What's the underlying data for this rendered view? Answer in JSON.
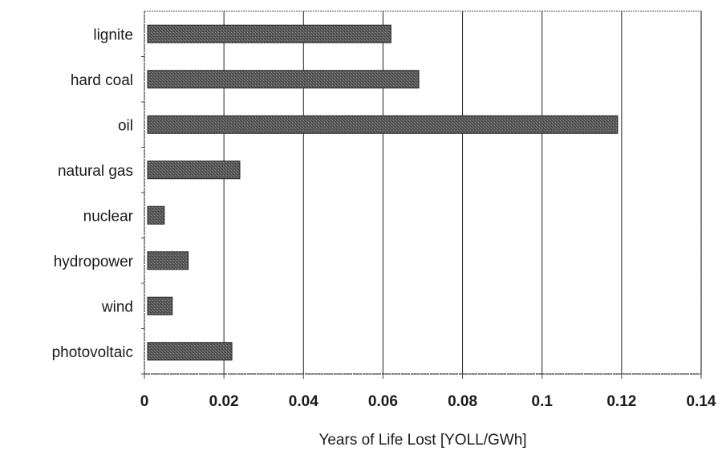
{
  "chart_data": {
    "type": "bar",
    "orientation": "horizontal",
    "categories": [
      "lignite",
      "hard coal",
      "oil",
      "natural gas",
      "nuclear",
      "hydropower",
      "wind",
      "photovoltaic"
    ],
    "values": [
      0.062,
      0.069,
      0.119,
      0.024,
      0.005,
      0.011,
      0.007,
      0.022
    ],
    "title": "",
    "xlabel": "Years of Life Lost [YOLL/GWh]",
    "ylabel": "",
    "xlim": [
      0,
      0.14
    ],
    "xticks": [
      "0",
      "0.02",
      "0.04",
      "0.06",
      "0.08",
      "0.1",
      "0.12",
      "0.14"
    ],
    "grid": "vertical",
    "bar_color": "#555555",
    "legend": "none"
  }
}
